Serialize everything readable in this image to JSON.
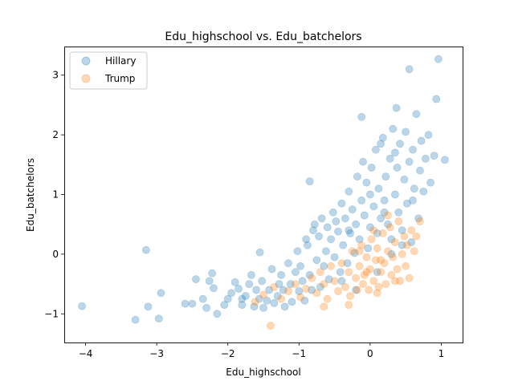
{
  "chart_data": {
    "type": "scatter",
    "title": "Edu_highschool vs. Edu_batchelors",
    "xlabel": "Edu_highschool",
    "ylabel": "Edu_batchelors",
    "xlim": [
      -4.3,
      1.3
    ],
    "ylim": [
      -1.48,
      3.48
    ],
    "xticks": [
      -4,
      -3,
      -2,
      -1,
      0,
      1
    ],
    "yticks": [
      -1,
      0,
      1,
      2,
      3
    ],
    "xtick_labels": [
      "−4",
      "−3",
      "−2",
      "−1",
      "0",
      "1"
    ],
    "ytick_labels": [
      "−1",
      "0",
      "1",
      "2",
      "3"
    ],
    "grid": false,
    "legend_position": "top-left",
    "marker_opacity": 0.3,
    "series": [
      {
        "name": "Hillary",
        "color": "#1f77b4",
        "points": [
          [
            -4.05,
            -0.87
          ],
          [
            -3.3,
            -1.1
          ],
          [
            -3.15,
            0.07
          ],
          [
            -3.12,
            -0.88
          ],
          [
            -2.97,
            -1.08
          ],
          [
            -2.94,
            -0.65
          ],
          [
            -2.6,
            -0.83
          ],
          [
            -2.5,
            -0.83
          ],
          [
            -2.45,
            -0.42
          ],
          [
            -2.35,
            -0.75
          ],
          [
            -2.3,
            -0.9
          ],
          [
            -2.26,
            -0.45
          ],
          [
            -2.22,
            -0.32
          ],
          [
            -2.2,
            -0.57
          ],
          [
            -2.15,
            -1.0
          ],
          [
            -2.05,
            -0.85
          ],
          [
            -2.0,
            -0.75
          ],
          [
            -1.95,
            -0.65
          ],
          [
            -1.9,
            -0.47
          ],
          [
            -1.85,
            -0.58
          ],
          [
            -1.8,
            -0.85
          ],
          [
            -1.75,
            -0.7
          ],
          [
            -1.7,
            -0.5
          ],
          [
            -1.67,
            -0.35
          ],
          [
            -1.63,
            -0.88
          ],
          [
            -1.6,
            -0.6
          ],
          [
            -1.56,
            -0.75
          ],
          [
            -1.52,
            -0.45
          ],
          [
            -1.5,
            -0.9
          ],
          [
            -1.45,
            -0.78
          ],
          [
            -1.42,
            -0.6
          ],
          [
            -1.38,
            -0.25
          ],
          [
            -1.35,
            -0.82
          ],
          [
            -1.3,
            -0.7
          ],
          [
            -1.28,
            -0.5
          ],
          [
            -1.25,
            -0.35
          ],
          [
            -1.22,
            -0.6
          ],
          [
            -1.2,
            -0.88
          ],
          [
            -1.15,
            -0.15
          ],
          [
            -1.12,
            -0.5
          ],
          [
            -1.1,
            -0.8
          ],
          [
            -1.05,
            -0.3
          ],
          [
            -1.02,
            0.05
          ],
          [
            -1.0,
            -0.62
          ],
          [
            -0.98,
            -0.2
          ],
          [
            -0.95,
            -0.45
          ],
          [
            -0.92,
            -0.78
          ],
          [
            -0.9,
            0.25
          ],
          [
            -0.88,
            0.15
          ],
          [
            -0.85,
            -0.35
          ],
          [
            -0.82,
            -0.6
          ],
          [
            -0.8,
            0.4
          ],
          [
            -0.78,
            0.5
          ],
          [
            -0.75,
            -0.1
          ],
          [
            -0.72,
            0.3
          ],
          [
            -0.7,
            -0.55
          ],
          [
            -0.68,
            0.6
          ],
          [
            -0.65,
            -0.2
          ],
          [
            -0.62,
            0.05
          ],
          [
            -0.6,
            0.45
          ],
          [
            -0.58,
            -0.42
          ],
          [
            -0.55,
            0.25
          ],
          [
            -0.52,
            0.7
          ],
          [
            -0.5,
            -0.05
          ],
          [
            -0.48,
            0.55
          ],
          [
            -0.45,
            0.38
          ],
          [
            -0.42,
            -0.3
          ],
          [
            -0.4,
            0.85
          ],
          [
            -0.38,
            0.15
          ],
          [
            -0.35,
            0.6
          ],
          [
            -0.32,
            -0.15
          ],
          [
            -0.3,
            1.05
          ],
          [
            -0.28,
            0.35
          ],
          [
            -0.25,
            0.75
          ],
          [
            -0.22,
            0.02
          ],
          [
            -0.2,
            0.5
          ],
          [
            -0.18,
            1.3
          ],
          [
            -0.15,
            0.25
          ],
          [
            -0.12,
            0.9
          ],
          [
            -0.1,
            1.55
          ],
          [
            -0.08,
            0.65
          ],
          [
            -0.05,
            1.2
          ],
          [
            -0.03,
            0.1
          ],
          [
            0.0,
            0.45
          ],
          [
            0.02,
            1.45
          ],
          [
            0.05,
            0.8
          ],
          [
            0.08,
            1.75
          ],
          [
            0.1,
            0.35
          ],
          [
            0.12,
            1.1
          ],
          [
            0.15,
            0.6
          ],
          [
            0.18,
            1.95
          ],
          [
            0.2,
            0.9
          ],
          [
            0.22,
            1.3
          ],
          [
            0.25,
            0.5
          ],
          [
            0.28,
            1.6
          ],
          [
            0.3,
            0.25
          ],
          [
            0.32,
            2.1
          ],
          [
            0.35,
            1.0
          ],
          [
            0.38,
            1.45
          ],
          [
            0.4,
            0.7
          ],
          [
            0.42,
            1.85
          ],
          [
            0.45,
            0.4
          ],
          [
            0.48,
            1.25
          ],
          [
            0.5,
            2.05
          ],
          [
            0.52,
            0.85
          ],
          [
            0.55,
            1.55
          ],
          [
            0.58,
            0.2
          ],
          [
            0.6,
            1.75
          ],
          [
            0.62,
            1.1
          ],
          [
            0.65,
            2.35
          ],
          [
            0.68,
            0.6
          ],
          [
            0.7,
            1.4
          ],
          [
            0.72,
            1.9
          ],
          [
            0.75,
            1.05
          ],
          [
            0.78,
            1.6
          ],
          [
            0.82,
            2.0
          ],
          [
            0.85,
            1.2
          ],
          [
            0.9,
            1.65
          ],
          [
            0.93,
            2.6
          ],
          [
            0.96,
            3.27
          ],
          [
            0.55,
            3.1
          ],
          [
            0.37,
            2.45
          ],
          [
            -0.12,
            2.3
          ],
          [
            -0.85,
            1.22
          ],
          [
            -1.55,
            0.03
          ],
          [
            -1.8,
            -0.75
          ],
          [
            1.05,
            1.58
          ],
          [
            0.3,
            0.0
          ],
          [
            0.1,
            -0.3
          ],
          [
            -0.2,
            -0.6
          ],
          [
            -0.4,
            -0.45
          ],
          [
            0.45,
            0.15
          ],
          [
            0.6,
            0.9
          ],
          [
            0.2,
            0.7
          ],
          [
            0.0,
            1.0
          ],
          [
            -0.3,
            0.4
          ],
          [
            0.35,
            1.7
          ],
          [
            0.15,
            1.85
          ]
        ]
      },
      {
        "name": "Trump",
        "color": "#ff7f0e",
        "points": [
          [
            -1.4,
            -1.2
          ],
          [
            -1.62,
            -0.8
          ],
          [
            -1.5,
            -0.68
          ],
          [
            -1.35,
            -0.55
          ],
          [
            -1.25,
            -0.75
          ],
          [
            -1.15,
            -0.62
          ],
          [
            -1.05,
            -0.5
          ],
          [
            -0.98,
            -0.72
          ],
          [
            -0.9,
            -0.58
          ],
          [
            -0.82,
            -0.4
          ],
          [
            -0.75,
            -0.65
          ],
          [
            -0.7,
            -0.3
          ],
          [
            -0.65,
            -0.5
          ],
          [
            -0.6,
            -0.75
          ],
          [
            -0.55,
            -0.2
          ],
          [
            -0.5,
            -0.45
          ],
          [
            -0.45,
            -0.62
          ],
          [
            -0.4,
            -0.15
          ],
          [
            -0.35,
            -0.55
          ],
          [
            -0.3,
            -0.3
          ],
          [
            -0.28,
            -0.7
          ],
          [
            -0.25,
            0.05
          ],
          [
            -0.2,
            -0.4
          ],
          [
            -0.18,
            -0.6
          ],
          [
            -0.15,
            -0.2
          ],
          [
            -0.12,
            0.15
          ],
          [
            -0.1,
            -0.5
          ],
          [
            -0.08,
            -0.35
          ],
          [
            -0.05,
            -0.05
          ],
          [
            -0.02,
            -0.6
          ],
          [
            0.0,
            -0.25
          ],
          [
            0.02,
            0.25
          ],
          [
            0.05,
            -0.45
          ],
          [
            0.08,
            -0.1
          ],
          [
            0.1,
            0.1
          ],
          [
            0.12,
            -0.55
          ],
          [
            0.15,
            -0.3
          ],
          [
            0.18,
            0.35
          ],
          [
            0.2,
            -0.15
          ],
          [
            0.22,
            -0.5
          ],
          [
            0.25,
            0.05
          ],
          [
            0.28,
            0.45
          ],
          [
            0.3,
            -0.35
          ],
          [
            0.32,
            -0.05
          ],
          [
            0.35,
            0.2
          ],
          [
            0.38,
            -0.25
          ],
          [
            0.4,
            0.55
          ],
          [
            0.42,
            -0.45
          ],
          [
            0.45,
            0.0
          ],
          [
            0.48,
            0.3
          ],
          [
            0.5,
            -0.2
          ],
          [
            0.52,
            0.15
          ],
          [
            0.55,
            -0.4
          ],
          [
            0.58,
            0.4
          ],
          [
            0.62,
            0.05
          ],
          [
            0.65,
            0.3
          ],
          [
            0.7,
            0.55
          ],
          [
            0.1,
            -0.65
          ],
          [
            -0.3,
            -0.85
          ],
          [
            -0.65,
            -0.88
          ],
          [
            0.25,
            0.65
          ],
          [
            0.05,
            0.4
          ],
          [
            -0.15,
            0.05
          ],
          [
            0.35,
            -0.45
          ],
          [
            0.15,
            -0.1
          ],
          [
            -0.05,
            -0.3
          ]
        ]
      }
    ]
  }
}
